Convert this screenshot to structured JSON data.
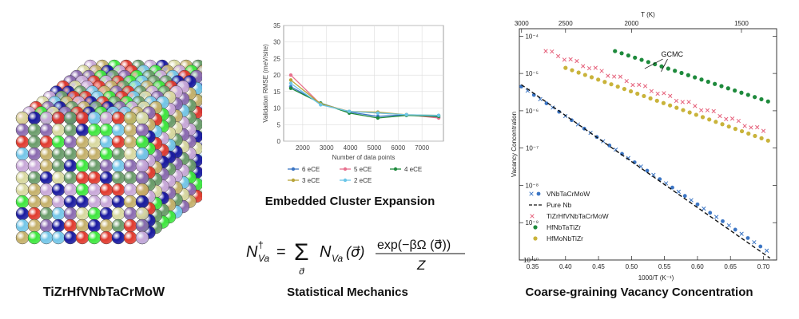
{
  "captions": {
    "left": "TiZrHfVNbTaCrMoW",
    "mid_title": "Embedded Cluster Expansion",
    "mid_bottom": "Statistical Mechanics",
    "right": "Coarse-graining Vacancy Concentration"
  },
  "colors": {
    "blue": "#3b75c4",
    "green": "#1e8a3c",
    "pink": "#e5607a",
    "olive": "#c9b33a",
    "lightblue": "#6cc6e8",
    "pink2": "#e8718e",
    "olive2": "#b8a43a"
  },
  "atom_palette": [
    "#1a1aa0",
    "#3ee63e",
    "#e03a2e",
    "#6a9c6a",
    "#c8a8d8",
    "#c4b06a",
    "#74c6e8",
    "#d8d8a0",
    "#8a6ab0"
  ],
  "equation": {
    "lhs": "N",
    "lhs_sub": "Va",
    "lhs_sup": "†",
    "sum_under": "σ⃗",
    "term": "N",
    "term_sub": "Va",
    "term_arg": "(σ⃗)",
    "numerator": "exp(−βΩ (σ⃗))",
    "denominator": "Z"
  },
  "chart_data": [
    {
      "type": "line",
      "xlabel": "Number of data points",
      "ylabel": "Validation RMSE (meV/site)",
      "xlim": [
        1200,
        7900
      ],
      "ylim": [
        0,
        35
      ],
      "xticks": [
        2000,
        3000,
        4000,
        5000,
        6000,
        7000
      ],
      "yticks": [
        0,
        5,
        10,
        15,
        20,
        25,
        30,
        35
      ],
      "x": [
        1500,
        2750,
        3950,
        5150,
        6350,
        7700
      ],
      "series": [
        {
          "name": "6 eCE",
          "color": "#3b75c4",
          "values": [
            16.5,
            11.5,
            8.8,
            7.5,
            8.0,
            7.2
          ]
        },
        {
          "name": "5 eCE",
          "color": "#e8718e",
          "values": [
            20.0,
            11.2,
            9.0,
            8.5,
            8.0,
            7.0
          ]
        },
        {
          "name": "4 eCE",
          "color": "#1e8a3c",
          "values": [
            16.0,
            11.5,
            8.5,
            7.0,
            7.8,
            7.5
          ]
        },
        {
          "name": "3 eCE",
          "color": "#b8a43a",
          "values": [
            18.5,
            11.3,
            9.0,
            8.8,
            8.0,
            7.8
          ]
        },
        {
          "name": "2 eCE",
          "color": "#6cc6e8",
          "values": [
            17.5,
            11.0,
            9.0,
            8.5,
            8.0,
            7.8
          ]
        }
      ],
      "legend_placement": "below"
    },
    {
      "type": "scatter",
      "xlabel": "1000/T (K⁻¹)",
      "ylabel": "Vacancy Concentration",
      "top_xlabel": "T (K)",
      "xlim": [
        0.33,
        0.72
      ],
      "ylim": [
        -10,
        -3.8
      ],
      "yscale": "log",
      "xticks": [
        0.35,
        0.4,
        0.45,
        0.5,
        0.55,
        0.6,
        0.65,
        0.7
      ],
      "xtick_labels": [
        "0.35",
        "0.40",
        "0.45",
        "0.50",
        "0.55",
        "0.60",
        "0.65",
        "0.70"
      ],
      "yticks": [
        -4,
        -5,
        -6,
        -7,
        -8,
        -9,
        -10
      ],
      "ytick_labels": [
        "10⁻⁴",
        "10⁻⁵",
        "10⁻⁶",
        "10⁻⁷",
        "10⁻⁸",
        "10⁻⁹",
        "10⁻¹⁰"
      ],
      "top_ticks": [
        3000,
        2500,
        2000,
        1500
      ],
      "top_tick_labels": [
        "3000",
        "2500",
        "2000",
        "1500"
      ],
      "annotation": "GCMC",
      "series": [
        {
          "name": "VNbTaCrMoW",
          "color": "#3b75c4",
          "marker": "cross+dot",
          "x_start": 0.333,
          "x_end": 0.705,
          "y_start": -5.35,
          "y_end": -9.75,
          "n": 40
        },
        {
          "name": "Pure Nb",
          "color": "#111111",
          "marker": "dashed-line",
          "x_start": 0.333,
          "x_end": 0.71,
          "y_start": -5.3,
          "y_end": -9.95
        },
        {
          "name": "TiZrHfVNbTaCrMoW",
          "color": "#e5607a",
          "marker": "cross",
          "x_start": 0.37,
          "x_end": 0.7,
          "y_start": -4.4,
          "y_end": -6.55,
          "n": 36
        },
        {
          "name": "HfNbTaTiZr",
          "color": "#1e8a3c",
          "marker": "dot",
          "x_start": 0.475,
          "x_end": 0.707,
          "y_start": -4.4,
          "y_end": -5.75,
          "n": 24
        },
        {
          "name": "HfMoNbTiZr",
          "color": "#c9b33a",
          "marker": "dot",
          "x_start": 0.4,
          "x_end": 0.707,
          "y_start": -4.85,
          "y_end": -6.8,
          "n": 32
        }
      ]
    }
  ]
}
